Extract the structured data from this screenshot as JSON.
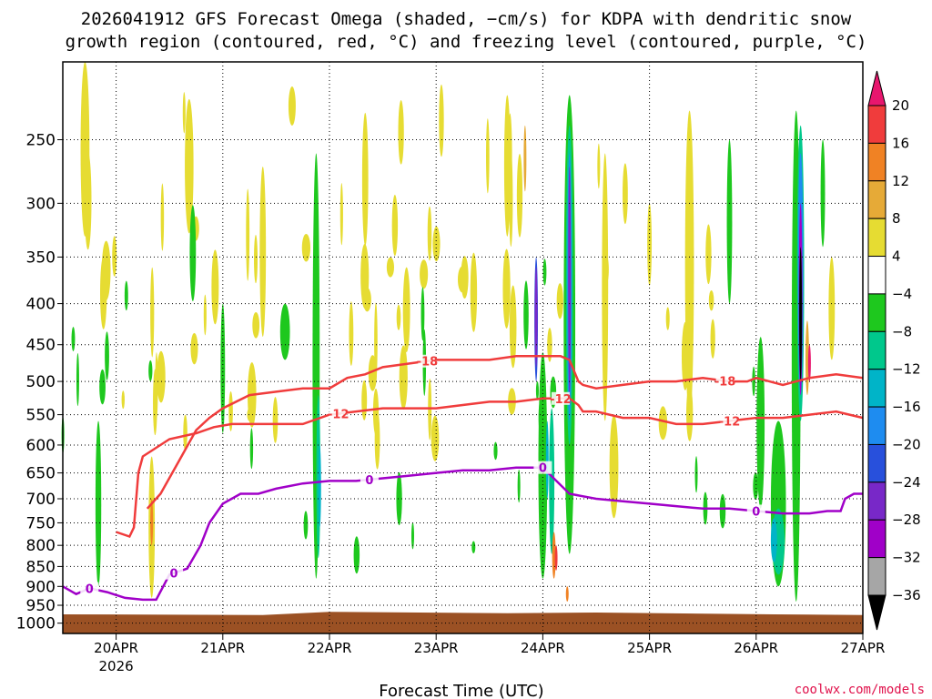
{
  "chart_data": {
    "type": "heatmap",
    "title": [
      "2026041912 GFS Forecast Omega (shaded, −cm/s) for KDPA with dendritic snow",
      "growth region (contoured, red, °C) and freezing level (contoured, purple, °C)"
    ],
    "xlabel": "Forecast Time (UTC)",
    "ylabel": "",
    "credit": "coolwx.com/models",
    "x_range": [
      "2026-04-19T12",
      "2026-04-27T00"
    ],
    "x_ticks": [
      {
        "label": "20APR",
        "sub": "2026",
        "t": 12
      },
      {
        "label": "21APR",
        "t": 36
      },
      {
        "label": "22APR",
        "t": 60
      },
      {
        "label": "23APR",
        "t": 84
      },
      {
        "label": "24APR",
        "t": 108
      },
      {
        "label": "25APR",
        "t": 132
      },
      {
        "label": "26APR",
        "t": 156
      },
      {
        "label": "27APR",
        "t": 180
      }
    ],
    "y_axis": {
      "scale": "log-pressure",
      "units": "hPa",
      "reversed": true,
      "ticks": [
        250,
        300,
        350,
        400,
        450,
        500,
        550,
        600,
        650,
        700,
        750,
        800,
        850,
        900,
        950,
        1000
      ]
    },
    "grid": true,
    "colorbar": {
      "labels": [
        "20",
        "16",
        "12",
        "8",
        "4",
        "−4",
        "−8",
        "−12",
        "−16",
        "−20",
        "−24",
        "−28",
        "−32",
        "−36"
      ],
      "colors": [
        "#e8176e",
        "#f03c3c",
        "#f08224",
        "#e6aa37",
        "#e6dc32",
        "#ffffff",
        "#1ec81e",
        "#00c88c",
        "#00b4c8",
        "#1e8cf0",
        "#2850dc",
        "#7828c8",
        "#a000c8",
        "#a6a6a6",
        "#000000"
      ]
    },
    "surface_color": "#9b5124",
    "contours": [
      {
        "series": "dgz_minus18",
        "label": "-18",
        "color": "#f03c3c",
        "label_at_t": [
          82,
          149
        ],
        "x_hours": [
          19,
          22,
          26,
          30,
          33,
          36,
          42,
          48,
          54,
          60,
          64,
          68,
          72,
          78,
          84,
          90,
          96,
          102,
          108,
          112,
          114,
          116,
          117,
          120,
          126,
          132,
          138,
          144,
          150,
          154,
          156,
          162,
          168,
          174,
          180
        ],
        "y_hpa": [
          720,
          690,
          630,
          575,
          555,
          540,
          520,
          515,
          510,
          510,
          495,
          490,
          480,
          475,
          470,
          470,
          470,
          465,
          465,
          465,
          470,
          500,
          505,
          510,
          505,
          500,
          500,
          495,
          500,
          500,
          495,
          505,
          495,
          490,
          495
        ]
      },
      {
        "series": "dgz_minus12",
        "label": "-12",
        "color": "#f03c3c",
        "label_at_t": [
          62,
          112,
          150
        ],
        "x_hours": [
          12,
          15,
          16,
          17,
          18,
          24,
          30,
          34,
          38,
          42,
          48,
          54,
          60,
          66,
          72,
          78,
          84,
          90,
          96,
          102,
          108,
          114,
          116,
          117,
          120,
          126,
          132,
          138,
          144,
          150,
          156,
          162,
          168,
          174,
          180
        ],
        "y_hpa": [
          770,
          780,
          760,
          650,
          620,
          590,
          580,
          570,
          565,
          565,
          565,
          565,
          550,
          545,
          540,
          540,
          540,
          535,
          530,
          530,
          525,
          525,
          535,
          545,
          545,
          555,
          555,
          565,
          565,
          560,
          555,
          555,
          550,
          545,
          555
        ]
      },
      {
        "series": "freezing_level",
        "label": "0",
        "color": "#a000c8",
        "label_at_t": [
          6,
          25,
          69,
          108,
          156
        ],
        "x_hours": [
          0,
          3,
          6,
          10,
          14,
          18,
          21,
          24,
          28,
          31,
          33,
          36,
          40,
          44,
          48,
          54,
          60,
          66,
          72,
          78,
          84,
          90,
          96,
          102,
          108,
          114,
          120,
          126,
          132,
          138,
          144,
          150,
          156,
          162,
          168,
          172,
          175,
          176,
          178,
          180
        ],
        "y_hpa": [
          900,
          920,
          905,
          915,
          930,
          935,
          935,
          870,
          855,
          800,
          750,
          710,
          690,
          690,
          680,
          670,
          665,
          665,
          660,
          655,
          650,
          645,
          645,
          640,
          640,
          690,
          700,
          705,
          710,
          715,
          720,
          720,
          725,
          730,
          730,
          725,
          725,
          700,
          690,
          690
        ]
      }
    ]
  }
}
